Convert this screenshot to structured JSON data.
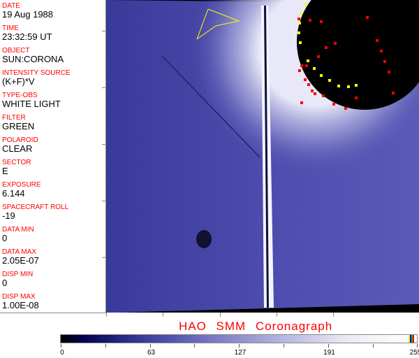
{
  "header_fields": [
    {
      "label": "DATE",
      "value": "19 Aug 1988"
    },
    {
      "label": "TIME",
      "value": "23:32:59 UT"
    },
    {
      "label": "OBJECT",
      "value": "SUN:CORONA"
    },
    {
      "label": "INTENSITY SOURCE",
      "value": "(K+F)*V"
    },
    {
      "label": "TYPE-OBS",
      "value": "WHITE LIGHT"
    },
    {
      "label": "FILTER",
      "value": "GREEN"
    },
    {
      "label": "POLAROID",
      "value": "CLEAR"
    },
    {
      "label": "SECTOR",
      "value": "E"
    },
    {
      "label": "EXPOSURE",
      "value": "6.144"
    },
    {
      "label": "SPACECRAFT ROLL",
      "value": "-19"
    },
    {
      "label": "DATA MIN",
      "value": "0"
    },
    {
      "label": "DATA MAX",
      "value": "2.05E-07"
    },
    {
      "label": "DISP MIN",
      "value": "0"
    },
    {
      "label": "DISP MAX",
      "value": "1.00E-08"
    }
  ],
  "title": "HAO  SMM  Coronagraph",
  "colorbar": {
    "ticks": [
      "0",
      "63",
      "127",
      "191",
      "255"
    ],
    "colormap": "black-blue-white",
    "overlay_colors": [
      "#ffff00",
      "#0000ff",
      "#00c000",
      "#ff0000"
    ]
  },
  "colors": {
    "label": "#ff0000",
    "overlay_red": "#ff0000",
    "overlay_yellow": "#ffff00"
  }
}
